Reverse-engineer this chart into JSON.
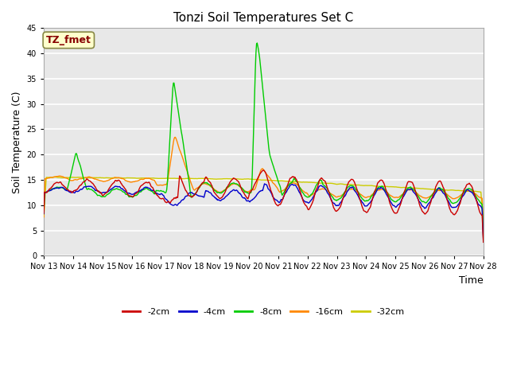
{
  "title": "Tonzi Soil Temperatures Set C",
  "xlabel": "Time",
  "ylabel": "Soil Temperature (C)",
  "ylim": [
    0,
    45
  ],
  "yticks": [
    0,
    5,
    10,
    15,
    20,
    25,
    30,
    35,
    40,
    45
  ],
  "x_tick_labels": [
    "Nov 13",
    "Nov 14",
    "Nov 15",
    "Nov 16",
    "Nov 17",
    "Nov 18",
    "Nov 19",
    "Nov 20",
    "Nov 21",
    "Nov 22",
    "Nov 23",
    "Nov 24",
    "Nov 25",
    "Nov 26",
    "Nov 27",
    "Nov 28"
  ],
  "colors": {
    "-2cm": "#cc0000",
    "-4cm": "#0000cc",
    "-8cm": "#00cc00",
    "-16cm": "#ff8800",
    "-32cm": "#cccc00"
  },
  "annotation_text": "TZ_fmet",
  "annotation_color": "#880000",
  "annotation_bg": "#ffffcc",
  "annotation_edge": "#888844",
  "background_color": "#e8e8e8",
  "grid_color": "#ffffff",
  "title_fontsize": 11,
  "axis_label_fontsize": 9,
  "tick_fontsize": 7,
  "legend_fontsize": 8,
  "linewidth": 1.0
}
